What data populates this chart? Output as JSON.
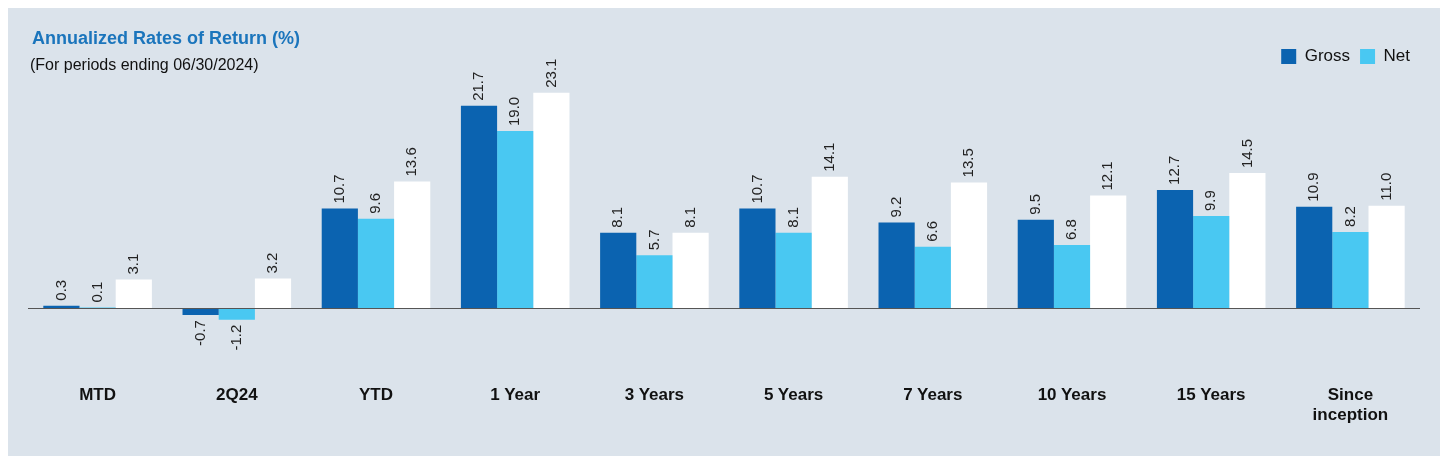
{
  "chart_data": {
    "type": "bar",
    "title": "Annualized Rates of Return (%)",
    "subtitle": "(For periods ending 06/30/2024)",
    "categories": [
      "MTD",
      "2Q24",
      "YTD",
      "1 Year",
      "3 Years",
      "5 Years",
      "7 Years",
      "10 Years",
      "15 Years",
      "Since inception"
    ],
    "series": [
      {
        "name": "Gross",
        "color": "#0b63b0",
        "values": [
          0.3,
          -0.7,
          10.7,
          21.7,
          8.1,
          10.7,
          9.2,
          9.5,
          12.7,
          10.9
        ],
        "value_labels": [
          "0.3",
          "-0.7",
          "10.7",
          "21.7",
          "8.1",
          "10.7",
          "9.2",
          "9.5",
          "12.7",
          "10.9"
        ]
      },
      {
        "name": "Net",
        "color": "#49c8f2",
        "values": [
          0.1,
          -1.2,
          9.6,
          19,
          5.7,
          8.1,
          6.6,
          6.8,
          9.9,
          8.2
        ],
        "value_labels": [
          "0.1",
          "-1.2",
          "9.6",
          "19.0",
          "5.7",
          "8.1",
          "6.6",
          "6.8",
          "9.9",
          "8.2"
        ]
      },
      {
        "color": "#ffffff",
        "values": [
          3.1,
          3.2,
          13.6,
          23.1,
          8.1,
          14.1,
          13.5,
          12.1,
          14.5,
          11
        ],
        "value_labels": [
          "3.1",
          "3.2",
          "13.6",
          "23.1",
          "8.1",
          "14.1",
          "13.5",
          "12.1",
          "14.5",
          "11.0"
        ]
      }
    ],
    "legend": "top right",
    "grid": false,
    "tick_labels": "x"
  }
}
